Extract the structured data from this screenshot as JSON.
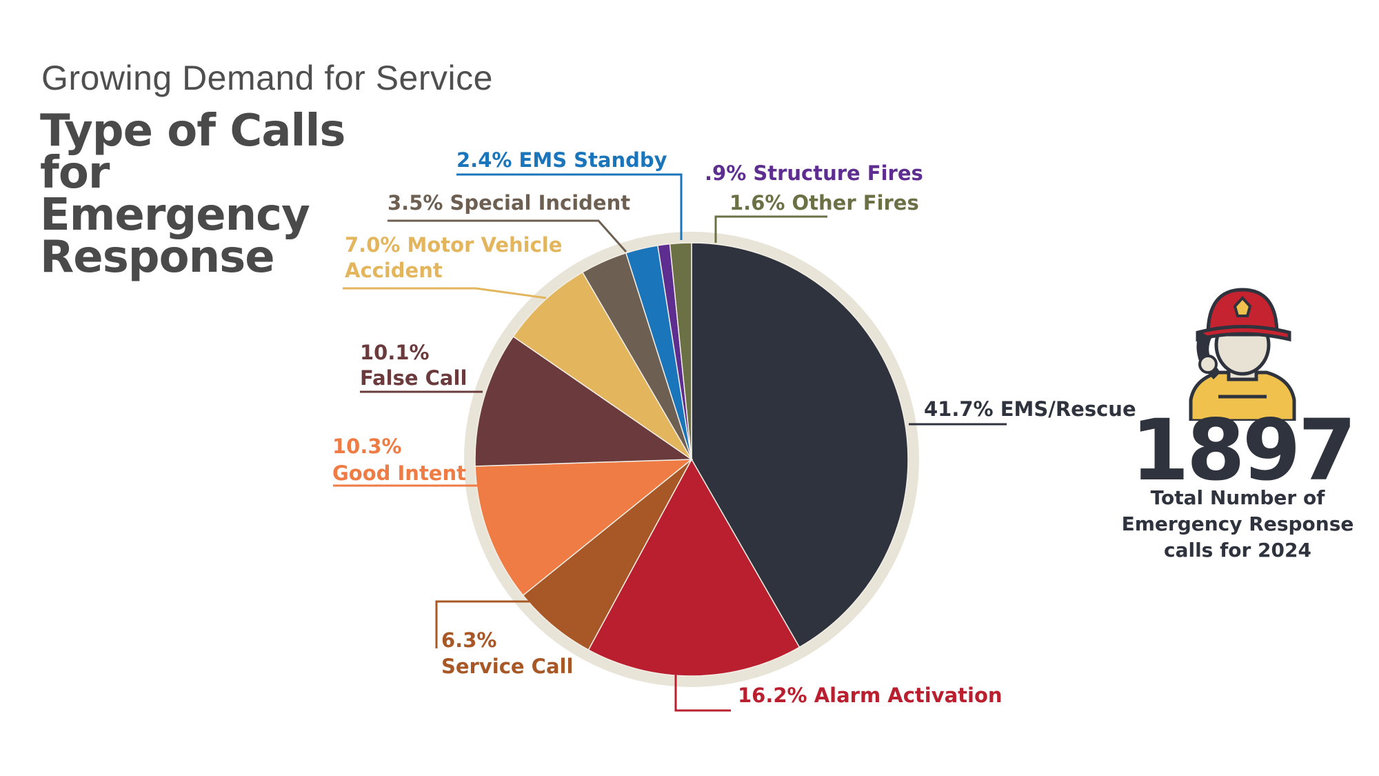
{
  "header": {
    "subtitle": "Growing Demand for Service",
    "title": "Type of Calls for Emergency Response"
  },
  "stat": {
    "number": "1897",
    "caption": "Total Number of Emergency Response calls for 2024",
    "icon": "firefighter-phone-icon"
  },
  "chart_data": {
    "type": "pie",
    "title": "Type of Calls for Emergency Response",
    "start": "12 o'clock, clockwise",
    "legend": "none (callout labels)",
    "slices": [
      {
        "label": "EMS/Rescue",
        "value": 41.7,
        "value_text": "41.7%",
        "color": "#2f333d"
      },
      {
        "label": "Alarm Activation",
        "value": 16.2,
        "value_text": "16.2%",
        "color": "#b91f2e"
      },
      {
        "label": "Service Call",
        "value": 6.3,
        "value_text": "6.3%",
        "color": "#a85826"
      },
      {
        "label": "Good Intent",
        "value": 10.3,
        "value_text": "10.3%",
        "color": "#ef7b45"
      },
      {
        "label": "False Call",
        "value": 10.1,
        "value_text": "10.1%",
        "color": "#6b3a3c"
      },
      {
        "label": "Motor Vehicle Accident",
        "value": 7.0,
        "value_text": "7.0%",
        "color": "#e3b65e"
      },
      {
        "label": "Special Incident",
        "value": 3.5,
        "value_text": "3.5%",
        "color": "#6d5f51"
      },
      {
        "label": "EMS Standby",
        "value": 2.4,
        "value_text": "2.4%",
        "color": "#1b75bb"
      },
      {
        "label": "Structure Fires",
        "value": 0.9,
        "value_text": ".9%",
        "color": "#5d2e8f"
      },
      {
        "label": "Other Fires",
        "value": 1.6,
        "value_text": "1.6%",
        "color": "#6b7045"
      }
    ],
    "ring_color": "#e9e4d8"
  }
}
